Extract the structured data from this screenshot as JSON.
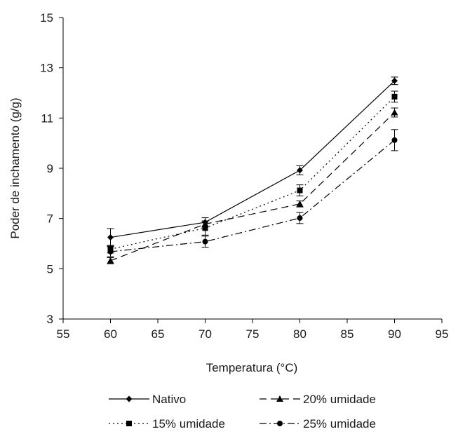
{
  "chart_data": {
    "type": "line",
    "xlabel": "Temperatura (°C)",
    "ylabel": "Poder de inchamento (g/g)",
    "xlim": [
      55,
      95
    ],
    "ylim": [
      3,
      15
    ],
    "xticks": [
      55,
      60,
      65,
      70,
      75,
      80,
      85,
      90,
      95
    ],
    "yticks": [
      3,
      5,
      7,
      9,
      11,
      13,
      15
    ],
    "grid": false,
    "legend_position": "bottom",
    "x": [
      60,
      70,
      80,
      90
    ],
    "series": [
      {
        "name": "Nativo",
        "values": [
          6.25,
          6.85,
          8.92,
          12.48
        ],
        "errors": [
          0.35,
          0.18,
          0.18,
          0.15
        ],
        "marker": "diamond",
        "dash": "solid"
      },
      {
        "name": "20% umidade",
        "values": [
          5.32,
          6.78,
          7.58,
          11.22
        ],
        "errors": [
          0.12,
          0.12,
          0.12,
          0.18
        ],
        "marker": "triangle",
        "dash": "dash"
      },
      {
        "name": "15% umidade",
        "values": [
          5.78,
          6.62,
          8.12,
          11.85
        ],
        "errors": [
          0.15,
          0.28,
          0.22,
          0.22
        ],
        "marker": "square",
        "dash": "dot"
      },
      {
        "name": "25% umidade",
        "values": [
          5.68,
          6.08,
          7.02,
          10.12
        ],
        "errors": [
          0.2,
          0.22,
          0.22,
          0.42
        ],
        "marker": "circle",
        "dash": "dashdot"
      }
    ]
  }
}
